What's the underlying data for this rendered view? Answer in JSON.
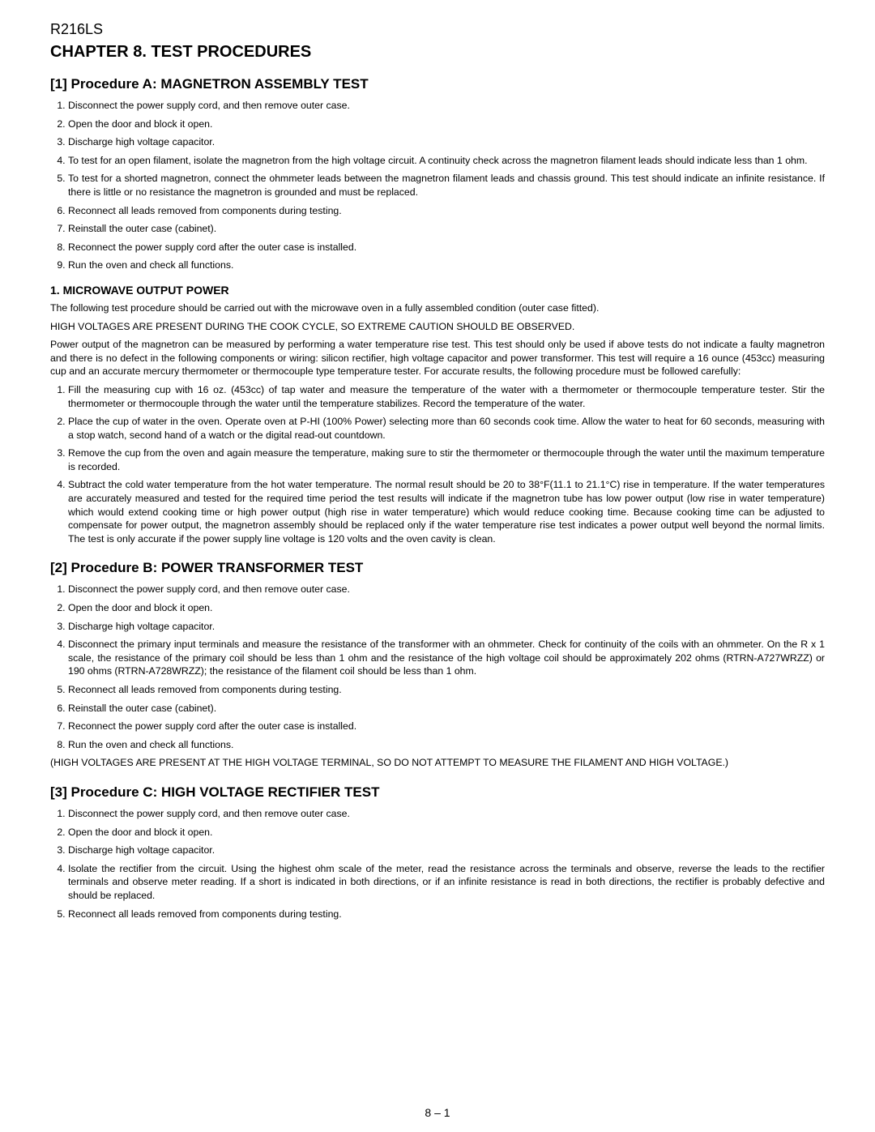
{
  "model": "R216LS",
  "chapter_title": "CHAPTER 8. TEST PROCEDURES",
  "procA": {
    "heading": "[1] Procedure A: MAGNETRON ASSEMBLY TEST",
    "items": [
      "Disconnect the power supply cord, and then remove outer case.",
      "Open the door and block it open.",
      "Discharge high voltage capacitor.",
      "To test for an open filament, isolate the magnetron from the high voltage circuit. A continuity check across the magnetron filament leads should indicate less than 1 ohm.",
      "To test for a shorted magnetron, connect the ohmmeter leads between the magnetron filament leads and chassis ground. This test should indicate an infinite resistance. If there is little or no resistance the magnetron is grounded and must be replaced.",
      "Reconnect all leads removed from components during testing.",
      "Reinstall the outer case (cabinet).",
      "Reconnect the power supply cord after the outer case is installed.",
      "Run the oven and check all functions."
    ]
  },
  "mop": {
    "heading": "1. MICROWAVE OUTPUT POWER",
    "p1": "The following test procedure should be carried out with the microwave oven in a fully assembled condition (outer case fitted).",
    "p2": "HIGH VOLTAGES ARE PRESENT DURING THE COOK CYCLE, SO EXTREME CAUTION SHOULD BE OBSERVED.",
    "p3": "Power output of the magnetron can be measured by performing a water temperature rise test. This test should only be used if above tests do not indicate a faulty magnetron and there is no defect in the following components or wiring: silicon rectifier, high voltage capacitor and power transformer. This test will require a 16 ounce (453cc) measuring cup and an accurate mercury thermometer or thermocouple type temperature tester. For accurate results, the following procedure must be followed carefully:",
    "items": [
      "Fill the measuring cup with 16 oz. (453cc) of tap water and measure the temperature of the water with a thermometer or thermocouple temperature tester. Stir the thermometer or thermocouple through the water until the temperature stabilizes. Record the temperature of the water.",
      "Place the cup of water in the oven. Operate oven at P-HI (100% Power) selecting more than 60 seconds cook time. Allow the water to heat for 60 seconds, measuring with a stop watch, second hand of a watch or the digital read-out countdown.",
      "Remove the cup from the oven and again measure the temperature, making sure to stir the thermometer or thermocouple through the water until the maximum temperature is recorded.",
      "Subtract the cold water temperature from the hot water temperature. The normal result should be 20 to 38°F(11.1 to 21.1°C) rise in temperature. If the water temperatures are accurately measured and tested for the required time period the test results will indicate if the magnetron tube has low power output (low rise in water temperature) which would extend cooking time or high power output (high rise in water temperature) which would reduce cooking time. Because cooking time can be adjusted to compensate for power output, the magnetron assembly should be replaced only if the water temperature rise test indicates a power output well beyond the normal limits. The test is only accurate if the power supply line voltage is 120 volts and the oven cavity is clean."
    ]
  },
  "procB": {
    "heading": "[2] Procedure B: POWER TRANSFORMER TEST",
    "items": [
      "Disconnect the power supply cord, and then remove outer case.",
      "Open the door and block it open.",
      "Discharge high voltage capacitor.",
      "Disconnect the primary input terminals and measure the resistance of the transformer with an ohmmeter. Check for continuity of the coils with an ohmmeter. On the R x 1 scale, the resistance of the primary coil should be less than 1 ohm and the resistance of the high voltage coil should be approximately 202 ohms (RTRN-A727WRZZ) or 190 ohms (RTRN-A728WRZZ); the resistance of the filament coil should be less than 1 ohm.",
      "Reconnect all leads removed from components during testing.",
      "Reinstall the outer case (cabinet).",
      "Reconnect the power supply cord after the outer case is installed.",
      "Run the oven and check all functions."
    ],
    "note": "(HIGH VOLTAGES ARE PRESENT AT THE HIGH VOLTAGE TERMINAL, SO DO NOT ATTEMPT TO MEASURE THE FILAMENT AND HIGH VOLTAGE.)"
  },
  "procC": {
    "heading": "[3] Procedure C: HIGH VOLTAGE RECTIFIER TEST",
    "items": [
      "Disconnect the power supply cord, and then remove outer case.",
      "Open the door and block it open.",
      "Discharge high voltage capacitor.",
      "Isolate the rectifier from the circuit. Using the highest ohm scale of the meter, read the resistance across the terminals and observe, reverse the leads to the rectifier terminals and observe meter reading. If a short is indicated in both directions, or if an infinite resistance is read in both directions, the rectifier is probably defective and should be replaced.",
      "Reconnect all leads removed from components during testing."
    ]
  },
  "page_num": "8 – 1"
}
